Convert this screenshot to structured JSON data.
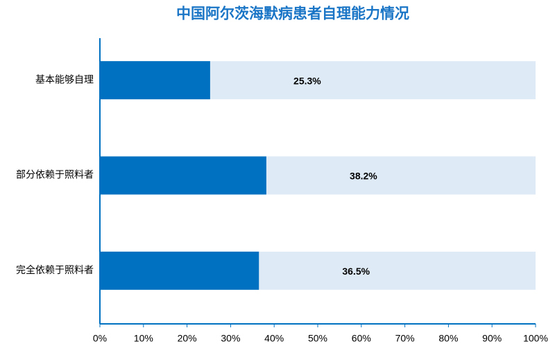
{
  "chart_data": {
    "type": "bar",
    "orientation": "horizontal",
    "title": "中国阿尔茨海默病患者自理能力情况",
    "categories": [
      "基本能够自理",
      "部分依赖于照料者",
      "完全依赖于照料者"
    ],
    "values": [
      25.3,
      38.2,
      36.5
    ],
    "value_labels": [
      "25.3%",
      "38.2%",
      "36.5%"
    ],
    "color": "#0070c0",
    "track_color": "#deeaf6",
    "xlim": [
      0,
      100
    ],
    "xticks": [
      {
        "value": 0,
        "label": "0%"
      },
      {
        "value": 10,
        "label": "10%"
      },
      {
        "value": 20,
        "label": "20%"
      },
      {
        "value": 30,
        "label": "30%"
      },
      {
        "value": 40,
        "label": "40%"
      },
      {
        "value": 50,
        "label": "50%"
      },
      {
        "value": 60,
        "label": "60%"
      },
      {
        "value": 70,
        "label": "70%"
      },
      {
        "value": 80,
        "label": "80%"
      },
      {
        "value": 90,
        "label": "90%"
      },
      {
        "value": 100,
        "label": "100%"
      }
    ],
    "grid": false
  }
}
